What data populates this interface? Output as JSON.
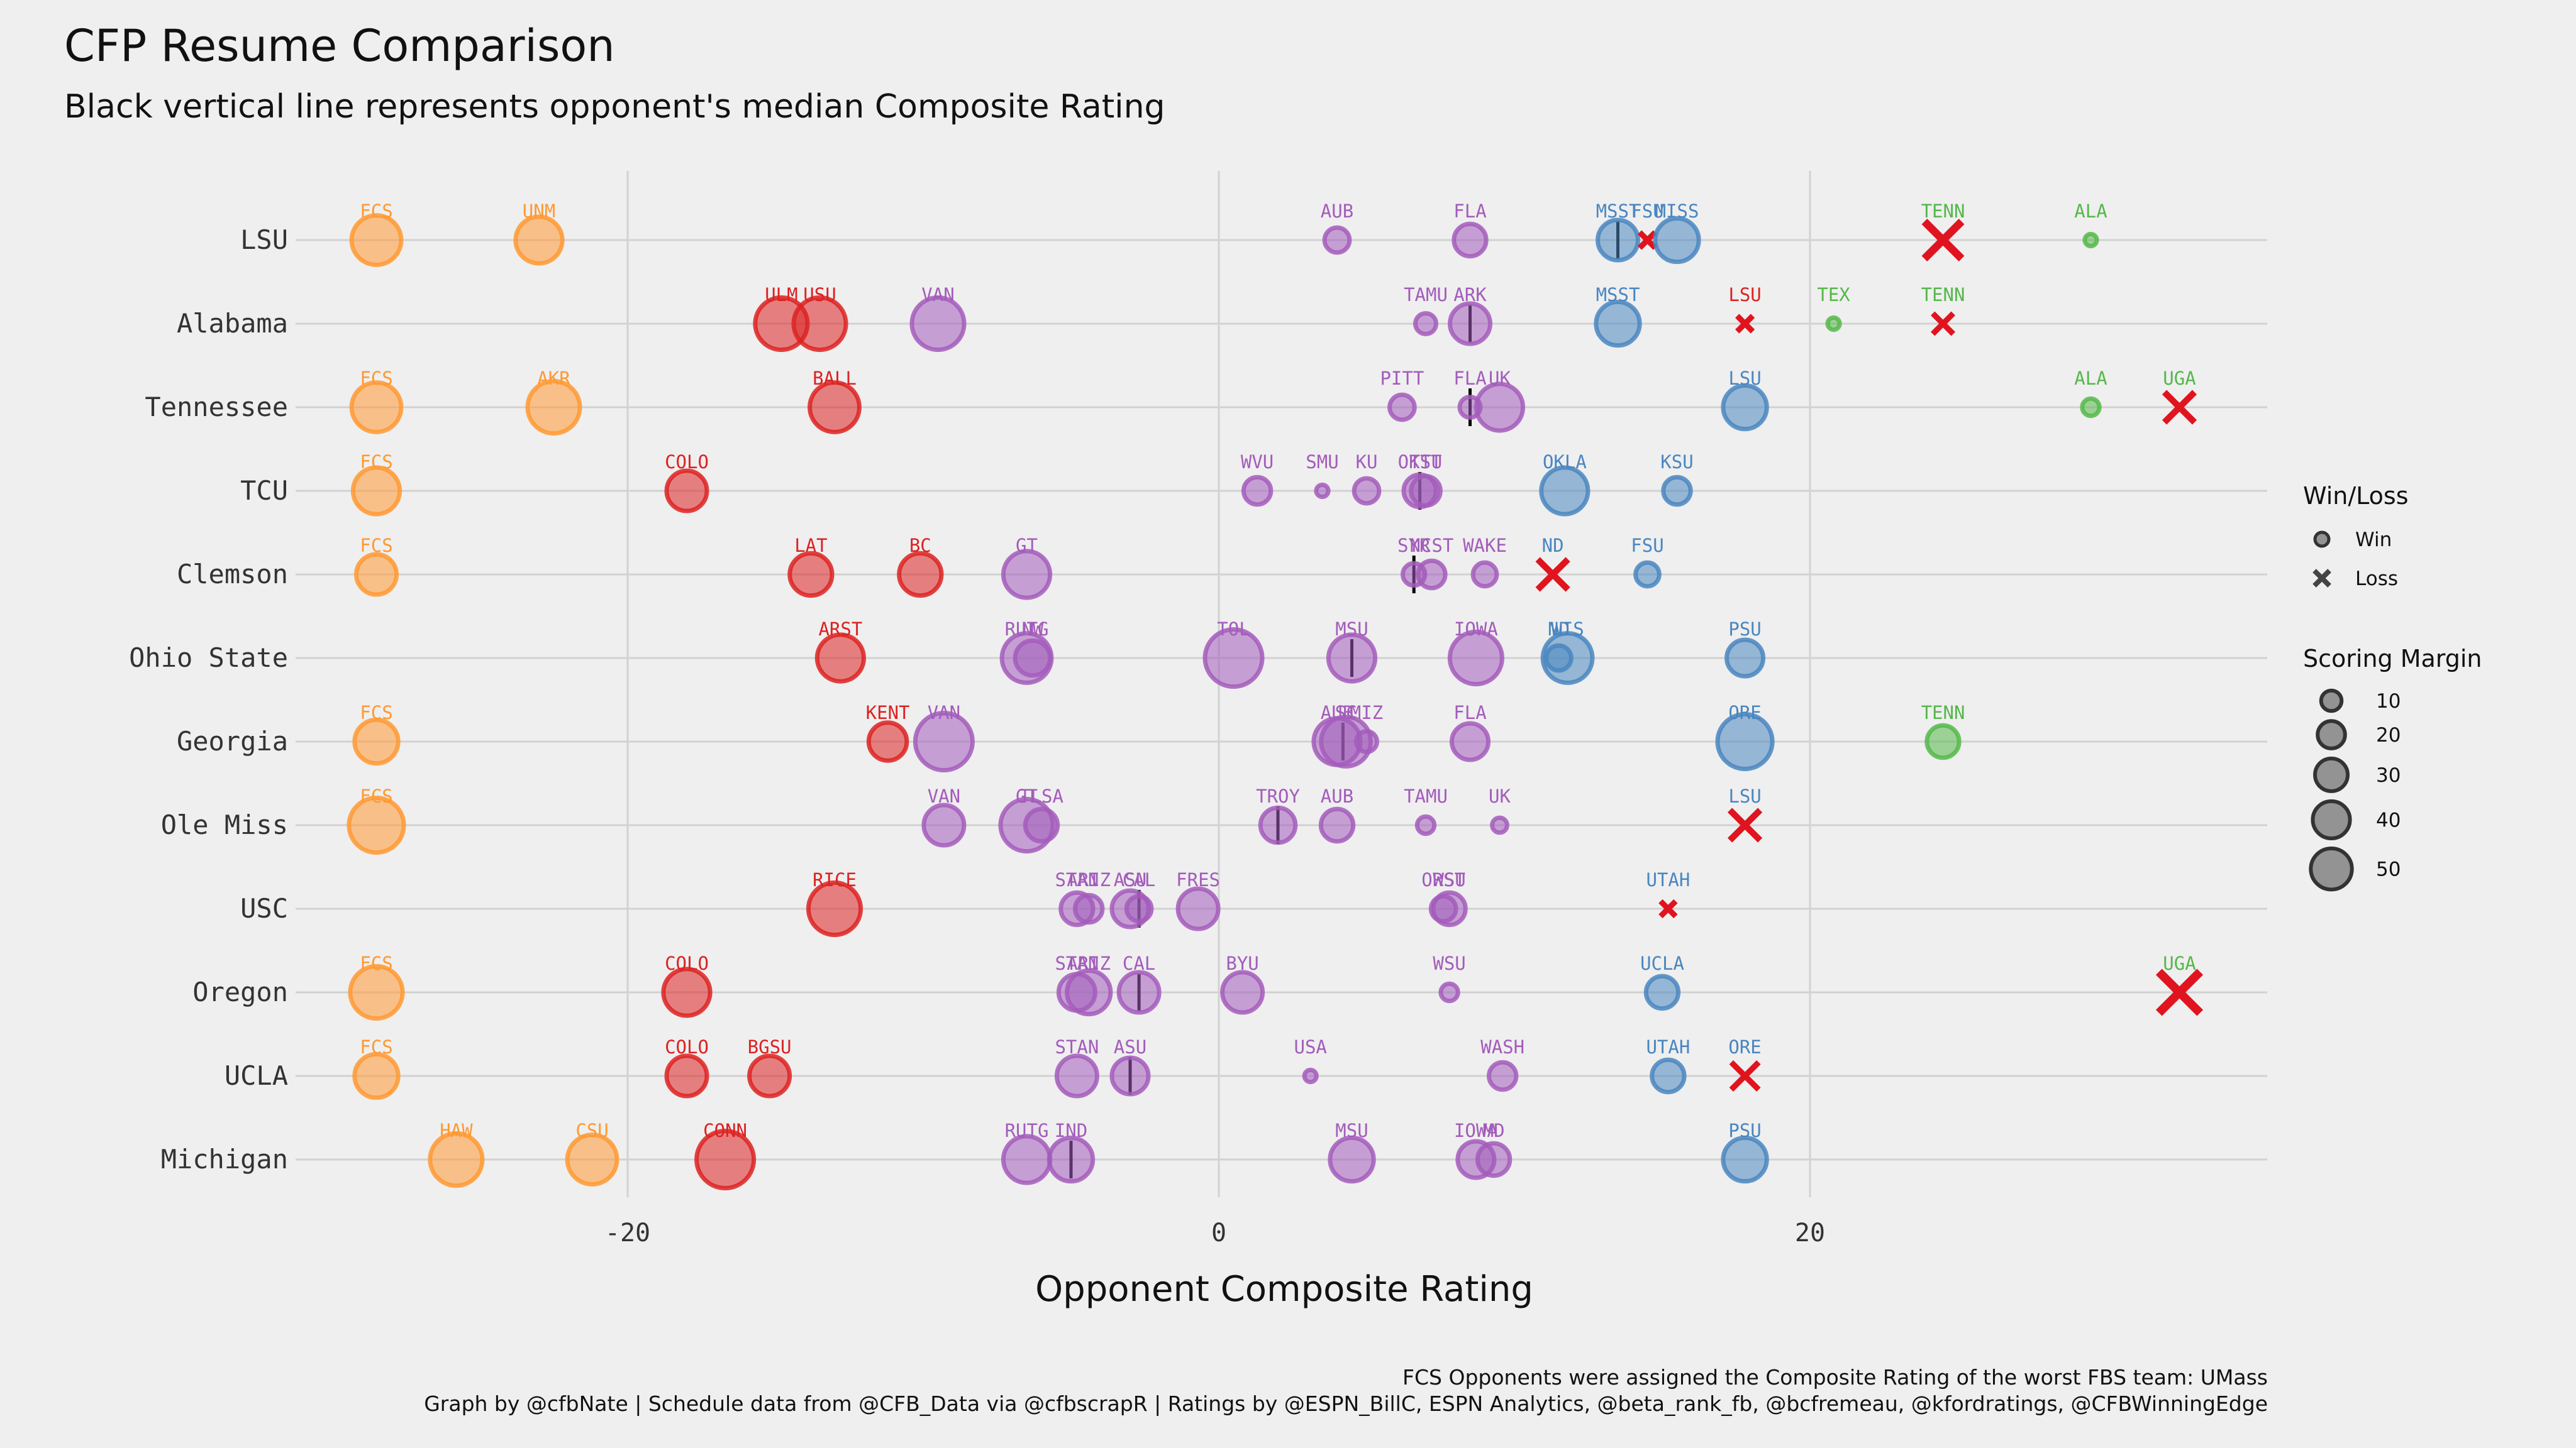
{
  "title": "CFP Resume Comparison",
  "subtitle": "Black vertical line represents opponent's median Composite Rating",
  "caption_line1": "FCS Opponents were assigned the Composite Rating of the worst FBS team: UMass",
  "caption_line2": "Graph by @cfbNate | Schedule data from @CFB_Data via @cfbscrapR | Ratings by @ESPN_BillC, ESPN Analytics, @beta_rank_fb, @bcfremeau, @kfordratings, @CFBWinningEdge",
  "colors": {
    "orange": "#ff9933",
    "red": "#dd2222",
    "purple": "#a35cbb",
    "blue": "#4a86c0",
    "green": "#55b84a",
    "loss": "#e0141e",
    "median": "#000000"
  },
  "chart_data": {
    "type": "scatter",
    "xlabel": "Opponent Composite Rating",
    "xlim": [
      -31.5,
      35.5
    ],
    "xticks": [
      -20,
      0,
      20
    ],
    "tick_labels": [
      "-20",
      "0",
      "20"
    ],
    "grid": true,
    "teams": [
      {
        "name": "LSU",
        "median": 13.5,
        "games": [
          {
            "opp": "FCS",
            "x": -28.5,
            "margin": 40,
            "result": "W",
            "color": "orange"
          },
          {
            "opp": "UNM",
            "x": -23,
            "margin": 35,
            "result": "W",
            "color": "orange"
          },
          {
            "opp": "AUB",
            "x": 4,
            "margin": 8,
            "result": "W",
            "color": "purple"
          },
          {
            "opp": "FLA",
            "x": 8.5,
            "margin": 15,
            "result": "W",
            "color": "purple"
          },
          {
            "opp": "MSST",
            "x": 13.5,
            "margin": 25,
            "result": "W",
            "color": "blue"
          },
          {
            "opp": "FSU",
            "x": 14.5,
            "margin": 5,
            "result": "L",
            "color": "blue"
          },
          {
            "opp": "MISS",
            "x": 15.5,
            "margin": 30,
            "result": "W",
            "color": "blue"
          },
          {
            "opp": "TENN",
            "x": 24.5,
            "margin": 40,
            "result": "L",
            "color": "green"
          },
          {
            "opp": "ALA",
            "x": 29.5,
            "margin": 1,
            "result": "W",
            "color": "green"
          }
        ]
      },
      {
        "name": "Alabama",
        "median": 8.5,
        "games": [
          {
            "opp": "ULM",
            "x": -14.8,
            "margin": 45,
            "result": "W",
            "color": "red"
          },
          {
            "opp": "USU",
            "x": -13.5,
            "margin": 45,
            "result": "W",
            "color": "red"
          },
          {
            "opp": "VAN",
            "x": -9.5,
            "margin": 45,
            "result": "W",
            "color": "purple"
          },
          {
            "opp": "TAMU",
            "x": 7,
            "margin": 5,
            "result": "W",
            "color": "purple"
          },
          {
            "opp": "ARK",
            "x": 8.5,
            "margin": 25,
            "result": "W",
            "color": "purple"
          },
          {
            "opp": "MSST",
            "x": 13.5,
            "margin": 30,
            "result": "W",
            "color": "blue"
          },
          {
            "opp": "LSU",
            "x": 17.8,
            "margin": 5,
            "result": "L",
            "color": "red"
          },
          {
            "opp": "TEX",
            "x": 20.8,
            "margin": 1,
            "result": "W",
            "color": "green"
          },
          {
            "opp": "TENN",
            "x": 24.5,
            "margin": 10,
            "result": "L",
            "color": "green"
          }
        ]
      },
      {
        "name": "Tennessee",
        "median": 8.5,
        "games": [
          {
            "opp": "FCS",
            "x": -28.5,
            "margin": 40,
            "result": "W",
            "color": "orange"
          },
          {
            "opp": "AKR",
            "x": -22.5,
            "margin": 45,
            "result": "W",
            "color": "orange"
          },
          {
            "opp": "BALL",
            "x": -13,
            "margin": 40,
            "result": "W",
            "color": "red"
          },
          {
            "opp": "PITT",
            "x": 6.2,
            "margin": 8,
            "result": "W",
            "color": "purple"
          },
          {
            "opp": "FLA",
            "x": 8.5,
            "margin": 5,
            "result": "W",
            "color": "purple"
          },
          {
            "opp": "UK",
            "x": 9.5,
            "margin": 35,
            "result": "W",
            "color": "purple"
          },
          {
            "opp": "LSU",
            "x": 17.8,
            "margin": 30,
            "result": "W",
            "color": "blue"
          },
          {
            "opp": "ALA",
            "x": 29.5,
            "margin": 3,
            "result": "W",
            "color": "green"
          },
          {
            "opp": "UGA",
            "x": 32.5,
            "margin": 25,
            "result": "L",
            "color": "green"
          }
        ]
      },
      {
        "name": "TCU",
        "median": 6.8,
        "games": [
          {
            "opp": "FCS",
            "x": -28.5,
            "margin": 35,
            "result": "W",
            "color": "orange"
          },
          {
            "opp": "COLO",
            "x": -18,
            "margin": 25,
            "result": "W",
            "color": "red"
          },
          {
            "opp": "WVU",
            "x": 1.3,
            "margin": 10,
            "result": "W",
            "color": "purple"
          },
          {
            "opp": "SMU",
            "x": 3.5,
            "margin": 1,
            "result": "W",
            "color": "purple"
          },
          {
            "opp": "KU",
            "x": 5,
            "margin": 8,
            "result": "W",
            "color": "purple"
          },
          {
            "opp": "OKST",
            "x": 6.8,
            "margin": 15,
            "result": "W",
            "color": "purple"
          },
          {
            "opp": "TTU",
            "x": 7,
            "margin": 12,
            "result": "W",
            "color": "purple"
          },
          {
            "opp": "OKLA",
            "x": 11.7,
            "margin": 35,
            "result": "W",
            "color": "blue"
          },
          {
            "opp": "KSU",
            "x": 15.5,
            "margin": 10,
            "result": "W",
            "color": "blue"
          }
        ]
      },
      {
        "name": "Clemson",
        "median": 6.6,
        "games": [
          {
            "opp": "FCS",
            "x": -28.5,
            "margin": 25,
            "result": "W",
            "color": "orange"
          },
          {
            "opp": "LAT",
            "x": -13.8,
            "margin": 28,
            "result": "W",
            "color": "red"
          },
          {
            "opp": "BC",
            "x": -10.1,
            "margin": 28,
            "result": "W",
            "color": "red"
          },
          {
            "opp": "GT",
            "x": -6.5,
            "margin": 35,
            "result": "W",
            "color": "purple"
          },
          {
            "opp": "SYR",
            "x": 6.6,
            "margin": 6,
            "result": "W",
            "color": "purple"
          },
          {
            "opp": "NCST",
            "x": 7.2,
            "margin": 10,
            "result": "W",
            "color": "purple"
          },
          {
            "opp": "WAKE",
            "x": 9,
            "margin": 7,
            "result": "W",
            "color": "purple"
          },
          {
            "opp": "ND",
            "x": 11.3,
            "margin": 25,
            "result": "L",
            "color": "blue"
          },
          {
            "opp": "FSU",
            "x": 14.5,
            "margin": 7,
            "result": "W",
            "color": "blue"
          }
        ]
      },
      {
        "name": "Ohio State",
        "median": 4.5,
        "games": [
          {
            "opp": "ARST",
            "x": -12.8,
            "margin": 35,
            "result": "W",
            "color": "red"
          },
          {
            "opp": "RUTG",
            "x": -6.5,
            "margin": 40,
            "result": "W",
            "color": "purple"
          },
          {
            "opp": "NW",
            "x": -6.3,
            "margin": 18,
            "result": "W",
            "color": "purple"
          },
          {
            "opp": "TOL",
            "x": 0.5,
            "margin": 55,
            "result": "W",
            "color": "purple"
          },
          {
            "opp": "MSU",
            "x": 4.5,
            "margin": 35,
            "result": "W",
            "color": "purple"
          },
          {
            "opp": "IOWA",
            "x": 8.7,
            "margin": 45,
            "result": "W",
            "color": "purple"
          },
          {
            "opp": "ND",
            "x": 11.5,
            "margin": 8,
            "result": "W",
            "color": "blue"
          },
          {
            "opp": "WIS",
            "x": 11.8,
            "margin": 40,
            "result": "W",
            "color": "blue"
          },
          {
            "opp": "PSU",
            "x": 17.8,
            "margin": 20,
            "result": "W",
            "color": "blue"
          }
        ]
      },
      {
        "name": "Georgia",
        "median": 4.2,
        "games": [
          {
            "opp": "FCS",
            "x": -28.5,
            "margin": 30,
            "result": "W",
            "color": "orange"
          },
          {
            "opp": "KENT",
            "x": -11.2,
            "margin": 22,
            "result": "W",
            "color": "red"
          },
          {
            "opp": "VAN",
            "x": -9.3,
            "margin": 55,
            "result": "W",
            "color": "purple"
          },
          {
            "opp": "AUB",
            "x": 4,
            "margin": 35,
            "result": "W",
            "color": "purple"
          },
          {
            "opp": "SC",
            "x": 4.3,
            "margin": 40,
            "result": "W",
            "color": "purple"
          },
          {
            "opp": "MIZ",
            "x": 5,
            "margin": 5,
            "result": "W",
            "color": "purple"
          },
          {
            "opp": "FLA",
            "x": 8.5,
            "margin": 20,
            "result": "W",
            "color": "purple"
          },
          {
            "opp": "ORE",
            "x": 17.8,
            "margin": 50,
            "result": "W",
            "color": "blue"
          },
          {
            "opp": "TENN",
            "x": 24.5,
            "margin": 15,
            "result": "W",
            "color": "green"
          }
        ]
      },
      {
        "name": "Ole Miss",
        "median": 2,
        "games": [
          {
            "opp": "FCS",
            "x": -28.5,
            "margin": 50,
            "result": "W",
            "color": "orange"
          },
          {
            "opp": "VAN",
            "x": -9.3,
            "margin": 25,
            "result": "W",
            "color": "purple"
          },
          {
            "opp": "GT",
            "x": -6.5,
            "margin": 45,
            "result": "W",
            "color": "purple"
          },
          {
            "opp": "TLSA",
            "x": -6,
            "margin": 15,
            "result": "W",
            "color": "purple"
          },
          {
            "opp": "TROY",
            "x": 2,
            "margin": 18,
            "result": "W",
            "color": "purple"
          },
          {
            "opp": "AUB",
            "x": 4,
            "margin": 15,
            "result": "W",
            "color": "purple"
          },
          {
            "opp": "TAMU",
            "x": 7,
            "margin": 3,
            "result": "W",
            "color": "purple"
          },
          {
            "opp": "UK",
            "x": 9.5,
            "margin": 2,
            "result": "W",
            "color": "purple"
          },
          {
            "opp": "LSU",
            "x": 17.8,
            "margin": 25,
            "result": "L",
            "color": "blue"
          }
        ]
      },
      {
        "name": "USC",
        "median": -2.7,
        "games": [
          {
            "opp": "RICE",
            "x": -13,
            "margin": 45,
            "result": "W",
            "color": "red"
          },
          {
            "opp": "STAN",
            "x": -4.8,
            "margin": 15,
            "result": "W",
            "color": "purple"
          },
          {
            "opp": "ARIZ",
            "x": -4.4,
            "margin": 10,
            "result": "W",
            "color": "purple"
          },
          {
            "opp": "ASU",
            "x": -3,
            "margin": 20,
            "result": "W",
            "color": "purple"
          },
          {
            "opp": "CAL",
            "x": -2.7,
            "margin": 8,
            "result": "W",
            "color": "purple"
          },
          {
            "opp": "FRES",
            "x": -0.7,
            "margin": 25,
            "result": "W",
            "color": "purple"
          },
          {
            "opp": "ORST",
            "x": 7.6,
            "margin": 8,
            "result": "W",
            "color": "purple"
          },
          {
            "opp": "WSU",
            "x": 7.8,
            "margin": 15,
            "result": "W",
            "color": "purple"
          },
          {
            "opp": "UTAH",
            "x": 15.2,
            "margin": 3,
            "result": "L",
            "color": "blue"
          }
        ]
      },
      {
        "name": "Oregon",
        "median": -2.7,
        "games": [
          {
            "opp": "FCS",
            "x": -28.5,
            "margin": 45,
            "result": "W",
            "color": "orange"
          },
          {
            "opp": "COLO",
            "x": -18,
            "margin": 35,
            "result": "W",
            "color": "red"
          },
          {
            "opp": "STAN",
            "x": -4.8,
            "margin": 20,
            "result": "W",
            "color": "purple"
          },
          {
            "opp": "ARIZ",
            "x": -4.4,
            "margin": 30,
            "result": "W",
            "color": "purple"
          },
          {
            "opp": "CAL",
            "x": -2.7,
            "margin": 25,
            "result": "W",
            "color": "purple"
          },
          {
            "opp": "BYU",
            "x": 0.8,
            "margin": 25,
            "result": "W",
            "color": "purple"
          },
          {
            "opp": "WSU",
            "x": 7.8,
            "margin": 3,
            "result": "W",
            "color": "purple"
          },
          {
            "opp": "UCLA",
            "x": 15,
            "margin": 15,
            "result": "W",
            "color": "blue"
          },
          {
            "opp": "UGA",
            "x": 32.5,
            "margin": 50,
            "result": "L",
            "color": "green"
          }
        ]
      },
      {
        "name": "UCLA",
        "median": -3,
        "games": [
          {
            "opp": "FCS",
            "x": -28.5,
            "margin": 30,
            "result": "W",
            "color": "orange"
          },
          {
            "opp": "COLO",
            "x": -18,
            "margin": 25,
            "result": "W",
            "color": "red"
          },
          {
            "opp": "BGSU",
            "x": -15.2,
            "margin": 25,
            "result": "W",
            "color": "red"
          },
          {
            "opp": "STAN",
            "x": -4.8,
            "margin": 25,
            "result": "W",
            "color": "purple"
          },
          {
            "opp": "ASU",
            "x": -3,
            "margin": 20,
            "result": "W",
            "color": "purple"
          },
          {
            "opp": "USA",
            "x": 3.1,
            "margin": 1,
            "result": "W",
            "color": "purple"
          },
          {
            "opp": "WASH",
            "x": 9.6,
            "margin": 10,
            "result": "W",
            "color": "purple"
          },
          {
            "opp": "UTAH",
            "x": 15.2,
            "margin": 15,
            "result": "W",
            "color": "blue"
          },
          {
            "opp": "ORE",
            "x": 17.8,
            "margin": 20,
            "result": "L",
            "color": "blue"
          }
        ]
      },
      {
        "name": "Michigan",
        "median": -5,
        "games": [
          {
            "opp": "HAW",
            "x": -25.8,
            "margin": 45,
            "result": "W",
            "color": "orange"
          },
          {
            "opp": "CSU",
            "x": -21.2,
            "margin": 40,
            "result": "W",
            "color": "orange"
          },
          {
            "opp": "CONN",
            "x": -16.7,
            "margin": 55,
            "result": "W",
            "color": "red"
          },
          {
            "opp": "RUTG",
            "x": -6.5,
            "margin": 35,
            "result": "W",
            "color": "purple"
          },
          {
            "opp": "IND",
            "x": -5,
            "margin": 30,
            "result": "W",
            "color": "purple"
          },
          {
            "opp": "MSU",
            "x": 4.5,
            "margin": 30,
            "result": "W",
            "color": "purple"
          },
          {
            "opp": "IOWA",
            "x": 8.7,
            "margin": 20,
            "result": "W",
            "color": "purple"
          },
          {
            "opp": "MD",
            "x": 9.3,
            "margin": 15,
            "result": "W",
            "color": "purple"
          },
          {
            "opp": "PSU",
            "x": 17.8,
            "margin": 30,
            "result": "W",
            "color": "blue"
          }
        ]
      }
    ],
    "legend": {
      "winloss_title": "Win/Loss",
      "win_label": "Win",
      "loss_label": "Loss",
      "margin_title": "Scoring Margin",
      "margin_values": [
        10,
        20,
        30,
        40,
        50
      ],
      "margin_labels": [
        "10",
        "20",
        "30",
        "40",
        "50"
      ]
    }
  }
}
